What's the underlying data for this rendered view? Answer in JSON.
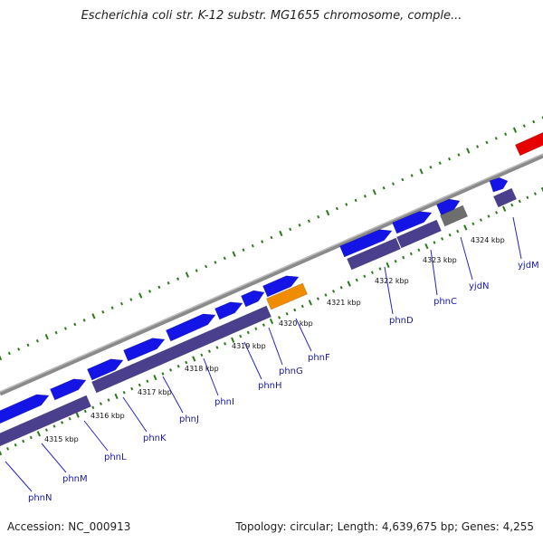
{
  "header": {
    "title": "Escherichia coli str. K-12 substr. MG1655 chromosome, comple..."
  },
  "footer": {
    "accession": "Accession: NC_000913",
    "summary": "Topology: circular; Length: 4,639,675 bp; Genes: 4,255"
  },
  "colors": {
    "cds": "#1414e6",
    "gene": "#4a3f8c",
    "rna": "#f08c00",
    "other": "#6e6e6e",
    "highlight": "#e60000",
    "backbone": "#8a8a8a",
    "tick": "#2a7a1a",
    "label": "#1a1aa6"
  },
  "scale_labels": [
    {
      "text": "4315 kbp"
    },
    {
      "text": "4316 kbp"
    },
    {
      "text": "4317 kbp"
    },
    {
      "text": "4318 kbp"
    },
    {
      "text": "4319 kbp"
    },
    {
      "text": "4320 kbp"
    },
    {
      "text": "4321 kbp"
    },
    {
      "text": "4322 kbp"
    },
    {
      "text": "4323 kbp"
    },
    {
      "text": "4324 kbp"
    }
  ],
  "gene_labels": [
    {
      "text": "phnN"
    },
    {
      "text": "phnM"
    },
    {
      "text": "phnL"
    },
    {
      "text": "phnK"
    },
    {
      "text": "phnJ"
    },
    {
      "text": "phnI"
    },
    {
      "text": "phnH"
    },
    {
      "text": "phnG"
    },
    {
      "text": "phnF"
    },
    {
      "text": "phnD"
    },
    {
      "text": "phnC"
    },
    {
      "text": "yjdN"
    },
    {
      "text": "yjdM"
    }
  ]
}
